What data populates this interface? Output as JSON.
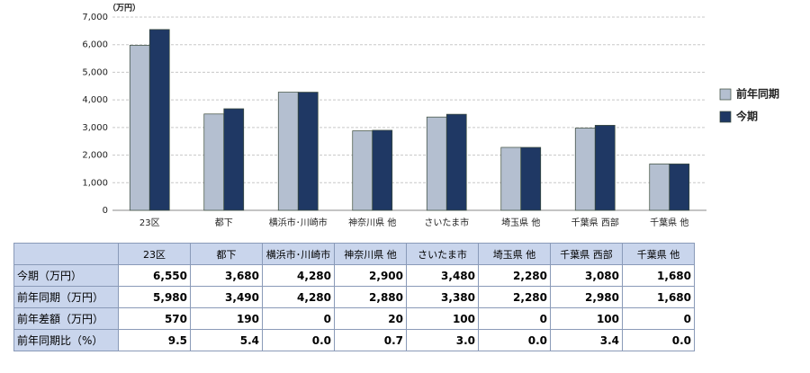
{
  "chart_data": {
    "type": "bar",
    "y_label": "（万円）",
    "categories": [
      "23区",
      "都下",
      "横浜市･川崎市",
      "神奈川県 他",
      "さいたま市",
      "埼玉県 他",
      "千葉県 西部",
      "千葉県 他"
    ],
    "series": [
      {
        "name": "前年同期",
        "color": "#b4bfd0",
        "values": [
          5980,
          3490,
          4280,
          2880,
          3380,
          2280,
          2980,
          1680
        ]
      },
      {
        "name": "今期",
        "color": "#1f3864",
        "values": [
          6550,
          3680,
          4280,
          2900,
          3480,
          2280,
          3080,
          1680
        ]
      }
    ],
    "ylim": [
      0,
      7000
    ],
    "yticks": [
      0,
      {
        "value": 1000,
        "label": "1,000"
      },
      {
        "value": 2000,
        "label": "2,000"
      },
      {
        "value": 3000,
        "label": "3,000"
      },
      {
        "value": 4000,
        "label": "4,000"
      },
      {
        "value": 5000,
        "label": "5,000"
      },
      {
        "value": 6000,
        "label": "6,000"
      },
      {
        "value": 7000,
        "label": "7,000"
      }
    ],
    "grid": true,
    "legend": "right"
  },
  "table": {
    "rows": [
      {
        "label": "今期（万円）",
        "cells": [
          "6,550",
          "3,680",
          "4,280",
          "2,900",
          "3,480",
          "2,280",
          "3,080",
          "1,680"
        ]
      },
      {
        "label": "前年同期（万円）",
        "cells": [
          "5,980",
          "3,490",
          "4,280",
          "2,880",
          "3,380",
          "2,280",
          "2,980",
          "1,680"
        ]
      },
      {
        "label": "前年差額（万円）",
        "cells": [
          "570",
          "190",
          "0",
          "20",
          "100",
          "0",
          "100",
          "0"
        ]
      },
      {
        "label": "前年同期比（%）",
        "cells": [
          "9.5",
          "5.4",
          "0.0",
          "0.7",
          "3.0",
          "0.0",
          "3.4",
          "0.0"
        ]
      }
    ]
  }
}
